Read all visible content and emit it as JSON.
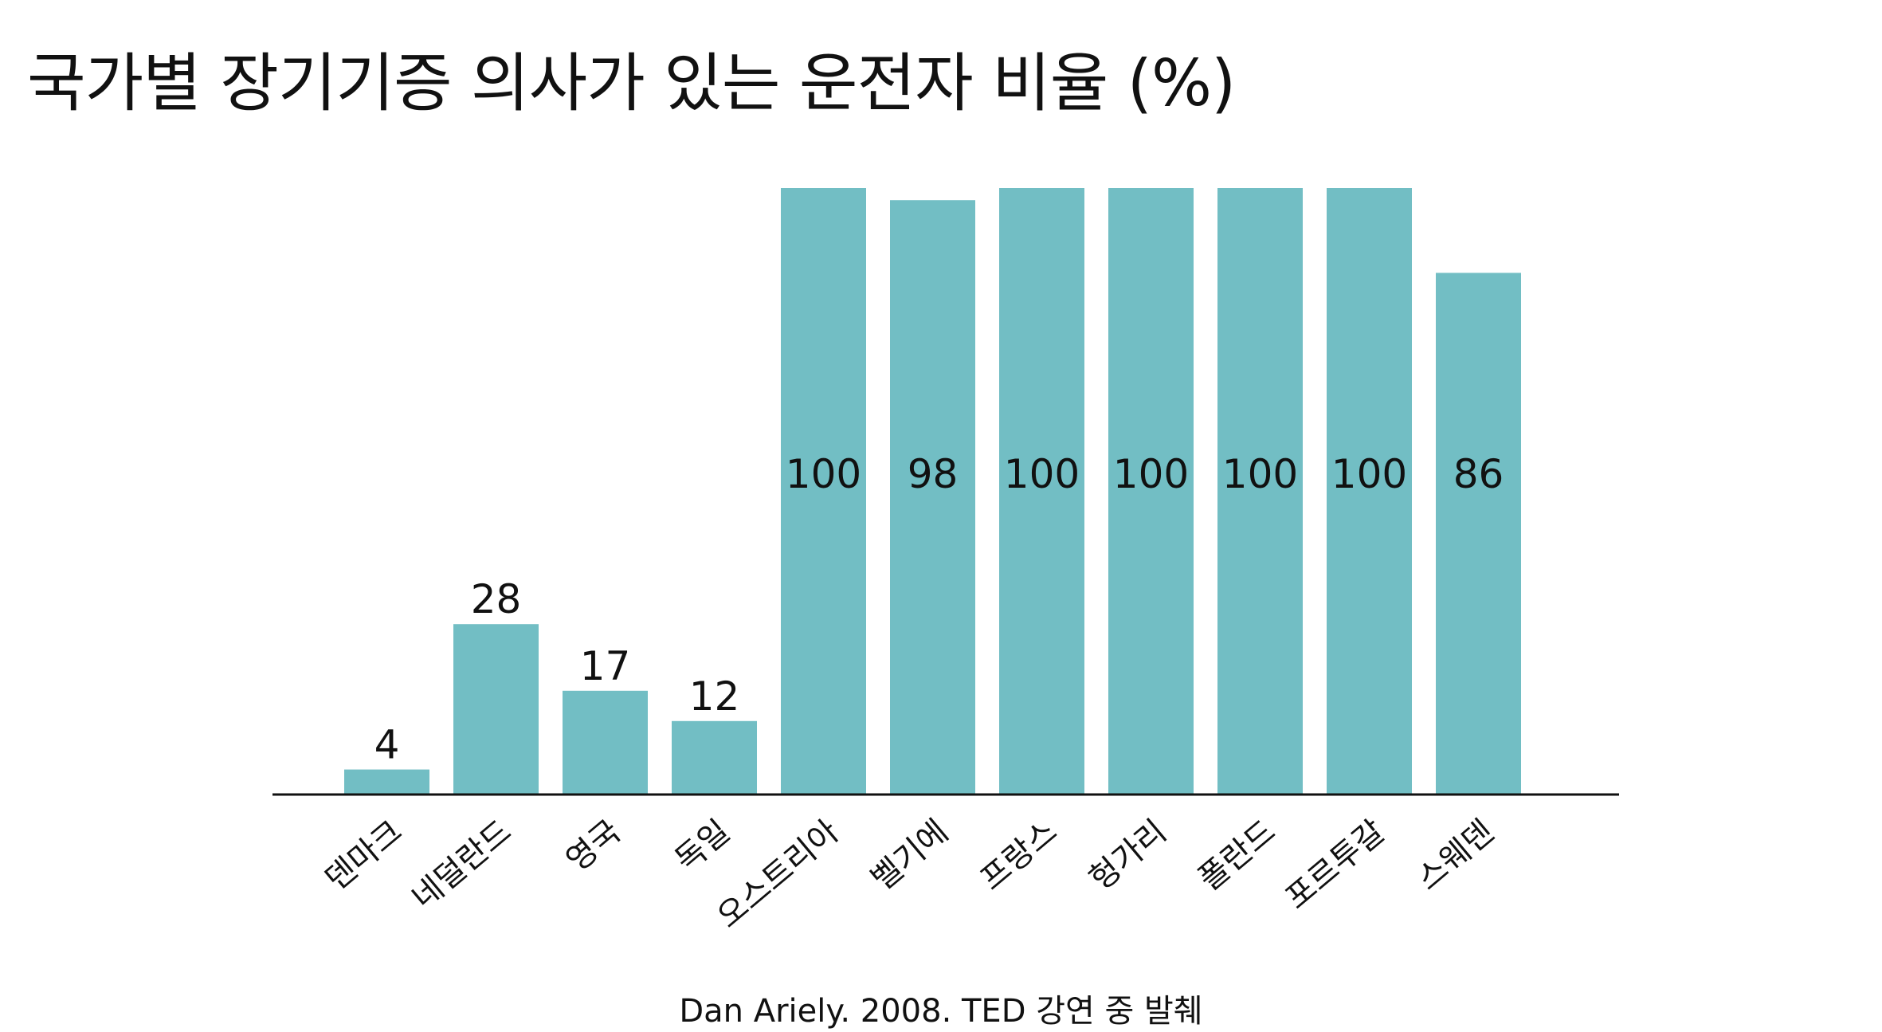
{
  "chart_data": {
    "type": "bar",
    "title": "국가별 장기기증 의사가 있는 운전자 비율 (%)",
    "categories": [
      "덴마크",
      "네덜란드",
      "영국",
      "독일",
      "오스트리아",
      "벨기에",
      "프랑스",
      "헝가리",
      "폴란드",
      "포르투갈",
      "스웨덴"
    ],
    "values": [
      4,
      28,
      17,
      12,
      100,
      98,
      100,
      100,
      100,
      100,
      86
    ],
    "value_labels": [
      "4",
      "28",
      "17",
      "12",
      "100",
      "98",
      "100",
      "100",
      "100",
      "100",
      "86"
    ],
    "ylim": [
      0,
      100
    ],
    "grid": false,
    "legend": "none",
    "bar_color": "#72bec4",
    "axis_color": "#111111",
    "source": "Dan Ariely. 2008. TED 강연 중 발췌"
  }
}
